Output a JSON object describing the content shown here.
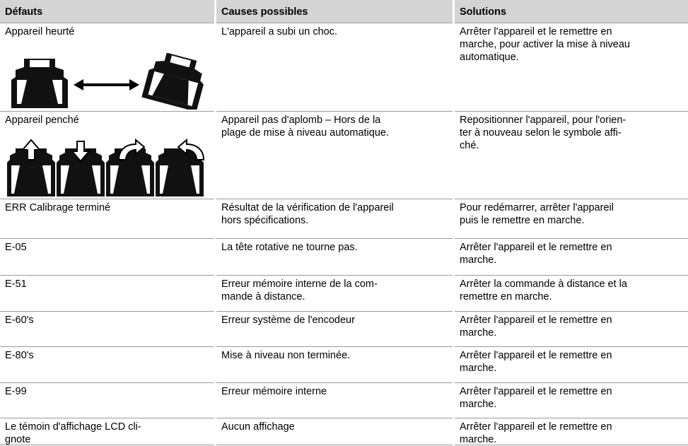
{
  "table": {
    "header": [
      "Défauts",
      "Causes possibles",
      "Solutions"
    ],
    "rows": [
      [
        [
          "Appareil heurté"
        ],
        [
          "L'appareil a subi un choc."
        ],
        [
          "Arrêter l'appareil et le remettre en",
          "marche, pour activer la mise à niveau",
          "automatique."
        ]
      ],
      [
        [
          "Appareil penché"
        ],
        [
          "Appareil pas d'aplomb – Hors de la",
          "plage de mise à niveau automatique."
        ],
        [
          "Repositionner l'appareil, pour l'orien-",
          "ter à nouveau selon le symbole affi-",
          "ché."
        ]
      ],
      [
        [
          "ERR Calibrage terminé"
        ],
        [
          "Résultat de la vérification de l'appareil",
          "hors spécifications."
        ],
        [
          "Pour redémarrer, arrêter l'appareil",
          "puis le remettre en marche."
        ]
      ],
      [
        [
          "E-05"
        ],
        [
          "La tête rotative ne tourne pas."
        ],
        [
          "Arrêter l'appareil et le remettre en",
          "marche."
        ]
      ],
      [
        [
          "E-51"
        ],
        [
          "Erreur mémoire interne de la com-",
          "mande à distance."
        ],
        [
          "Arrêter la commande à distance et la",
          "remettre en marche."
        ]
      ],
      [
        [
          "E-60's"
        ],
        [
          "Erreur système de l'encodeur"
        ],
        [
          "Arrêter l'appareil et le remettre en",
          "marche."
        ]
      ],
      [
        [
          "E-80's"
        ],
        [
          "Mise à niveau non terminée."
        ],
        [
          "Arrêter l'appareil et le remettre en",
          "marche."
        ]
      ],
      [
        [
          "E-99"
        ],
        [
          "Erreur mémoire interne"
        ],
        [
          "Arrêter l'appareil et le remettre en",
          "marche."
        ]
      ],
      [
        [
          "Le témoin d'affichage LCD cli-",
          "gnote"
        ],
        [
          "Aucun affichage"
        ],
        [
          "Arrêter l'appareil et le remettre en",
          "marche."
        ]
      ]
    ]
  }
}
